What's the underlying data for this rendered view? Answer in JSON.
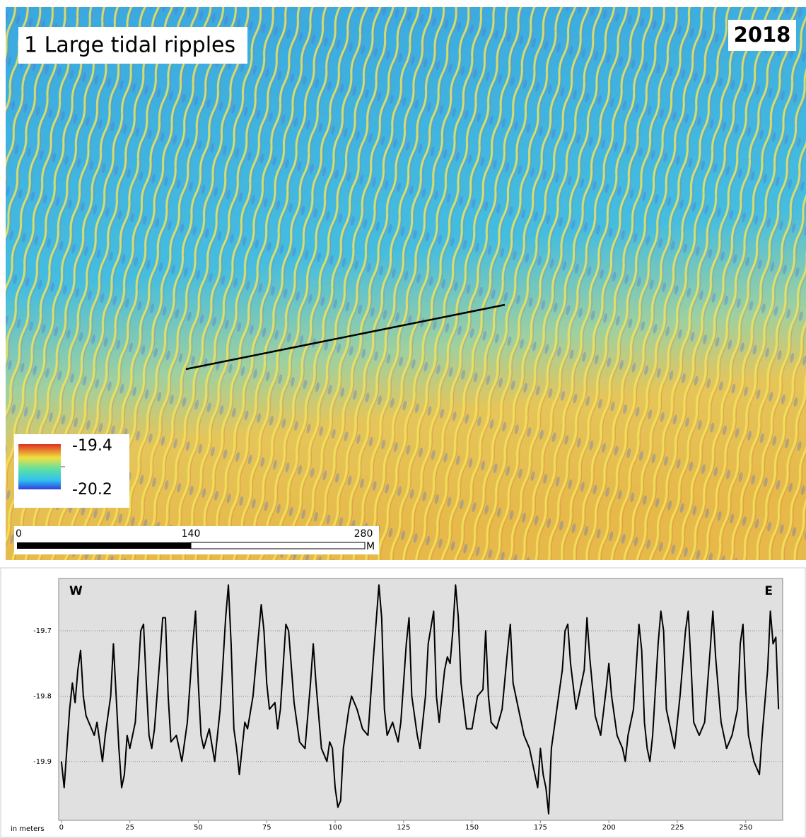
{
  "map": {
    "title": "1 Large tidal ripples",
    "year": "2018",
    "legend": {
      "max": "-19.4",
      "min": "-20.2"
    },
    "scale_bar": {
      "labels": [
        "0",
        "140",
        "280"
      ],
      "unit": "M"
    }
  },
  "chart_data": {
    "type": "line",
    "annotations": [
      "W",
      "E"
    ],
    "y_label": "in meters",
    "x": [
      0,
      1,
      2,
      3,
      4,
      5,
      6,
      7,
      8,
      9,
      10,
      12,
      13,
      15,
      16,
      18,
      19,
      20,
      21,
      22,
      23,
      24,
      25,
      27,
      29,
      30,
      31,
      32,
      33,
      34,
      36,
      37,
      38,
      39,
      40,
      42,
      44,
      46,
      48,
      49,
      50,
      51,
      52,
      54,
      56,
      58,
      60,
      61,
      62,
      63,
      64,
      65,
      66,
      67,
      68,
      70,
      73,
      74,
      75,
      76,
      78,
      79,
      80,
      82,
      83,
      85,
      87,
      89,
      91,
      92,
      93,
      95,
      97,
      98,
      99,
      100,
      101,
      102,
      103,
      105,
      106,
      108,
      110,
      112,
      114,
      116,
      117,
      118,
      119,
      121,
      123,
      124,
      126,
      127,
      128,
      130,
      131,
      133,
      134,
      136,
      137,
      138,
      140,
      141,
      142,
      143,
      144,
      145,
      146,
      148,
      150,
      152,
      154,
      155,
      156,
      157,
      159,
      161,
      163,
      164,
      165,
      167,
      169,
      171,
      173,
      174,
      175,
      176,
      177,
      178,
      179,
      181,
      183,
      184,
      185,
      186,
      188,
      189,
      191,
      192,
      193,
      195,
      197,
      199,
      200,
      201,
      203,
      205,
      206,
      207,
      209,
      211,
      212,
      213,
      214,
      215,
      216,
      218,
      219,
      220,
      221,
      223,
      224,
      226,
      228,
      229,
      230,
      231,
      233,
      235,
      237,
      238,
      239,
      241,
      243,
      245,
      247,
      248,
      249,
      250,
      251,
      252,
      253,
      255,
      256,
      258,
      259,
      260,
      261,
      262
    ],
    "values": [
      -19.9,
      -19.94,
      -19.88,
      -19.82,
      -19.78,
      -19.81,
      -19.76,
      -19.73,
      -19.8,
      -19.83,
      -19.84,
      -19.86,
      -19.84,
      -19.9,
      -19.86,
      -19.8,
      -19.72,
      -19.8,
      -19.88,
      -19.94,
      -19.92,
      -19.86,
      -19.88,
      -19.84,
      -19.7,
      -19.69,
      -19.78,
      -19.86,
      -19.88,
      -19.85,
      -19.74,
      -19.68,
      -19.68,
      -19.8,
      -19.87,
      -19.86,
      -19.9,
      -19.84,
      -19.72,
      -19.67,
      -19.78,
      -19.86,
      -19.88,
      -19.85,
      -19.9,
      -19.82,
      -19.68,
      -19.63,
      -19.72,
      -19.85,
      -19.88,
      -19.92,
      -19.88,
      -19.84,
      -19.85,
      -19.8,
      -19.66,
      -19.7,
      -19.78,
      -19.82,
      -19.81,
      -19.85,
      -19.82,
      -19.69,
      -19.7,
      -19.81,
      -19.87,
      -19.88,
      -19.78,
      -19.72,
      -19.78,
      -19.88,
      -19.9,
      -19.87,
      -19.88,
      -19.94,
      -19.97,
      -19.96,
      -19.88,
      -19.82,
      -19.8,
      -19.82,
      -19.85,
      -19.86,
      -19.74,
      -19.63,
      -19.68,
      -19.82,
      -19.86,
      -19.84,
      -19.87,
      -19.84,
      -19.72,
      -19.68,
      -19.8,
      -19.86,
      -19.88,
      -19.8,
      -19.72,
      -19.67,
      -19.8,
      -19.84,
      -19.76,
      -19.74,
      -19.75,
      -19.7,
      -19.63,
      -19.68,
      -19.78,
      -19.85,
      -19.85,
      -19.8,
      -19.79,
      -19.7,
      -19.8,
      -19.84,
      -19.85,
      -19.82,
      -19.73,
      -19.69,
      -19.78,
      -19.82,
      -19.86,
      -19.88,
      -19.92,
      -19.94,
      -19.88,
      -19.92,
      -19.94,
      -19.98,
      -19.88,
      -19.82,
      -19.76,
      -19.7,
      -19.69,
      -19.75,
      -19.82,
      -19.8,
      -19.76,
      -19.68,
      -19.74,
      -19.83,
      -19.86,
      -19.79,
      -19.75,
      -19.8,
      -19.86,
      -19.88,
      -19.9,
      -19.86,
      -19.82,
      -19.69,
      -19.73,
      -19.84,
      -19.88,
      -19.9,
      -19.86,
      -19.72,
      -19.67,
      -19.7,
      -19.82,
      -19.86,
      -19.88,
      -19.8,
      -19.7,
      -19.67,
      -19.75,
      -19.84,
      -19.86,
      -19.84,
      -19.73,
      -19.67,
      -19.74,
      -19.84,
      -19.88,
      -19.86,
      -19.82,
      -19.72,
      -19.69,
      -19.79,
      -19.86,
      -19.88,
      -19.9,
      -19.92,
      -19.86,
      -19.76,
      -19.67,
      -19.72,
      -19.71,
      -19.82
    ],
    "color": "#000000",
    "xlim": [
      -1,
      263.5
    ],
    "ylim": [
      -19.99,
      -19.62
    ],
    "xticks": [
      0,
      25,
      50,
      75,
      100,
      125,
      150,
      175,
      200,
      225,
      250
    ],
    "yticks": [
      -19.7,
      -19.8,
      -19.9
    ],
    "grid": true
  }
}
